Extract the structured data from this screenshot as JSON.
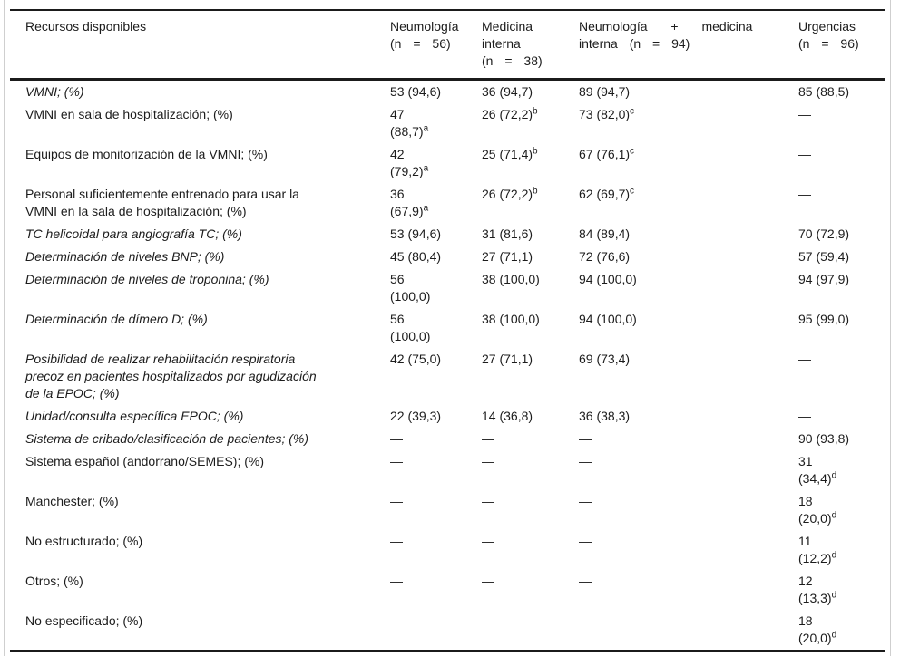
{
  "colors": {
    "text": "#1c1c1c",
    "heavy_rule": "#1b1b1b",
    "frame_border": "#cfcfcf",
    "background": "#ffffff"
  },
  "table": {
    "empty_marker": "—",
    "columns": [
      {
        "lines": [
          "Recursos disponibles"
        ]
      },
      {
        "lines": [
          "Neumología",
          "(n = 56)"
        ]
      },
      {
        "lines": [
          "Medicina",
          "interna",
          "(n = 38)"
        ]
      },
      {
        "lines": [
          "Neumología + medicina",
          "interna (n = 94)"
        ]
      },
      {
        "lines": [
          "Urgencias",
          "(n = 96)"
        ]
      }
    ],
    "rows": [
      {
        "italic": true,
        "label": {
          "lines": [
            "VMNI; (%)"
          ]
        },
        "cells": [
          {
            "lines": [
              "53 (94,6)"
            ]
          },
          {
            "lines": [
              "36 (94,7)"
            ]
          },
          {
            "lines": [
              "89 (94,7)"
            ]
          },
          {
            "lines": [
              "85 (88,5)"
            ]
          }
        ]
      },
      {
        "italic": false,
        "label": {
          "lines": [
            "VMNI en sala de hospitalización; (%)"
          ]
        },
        "cells": [
          {
            "lines": [
              "47",
              "(88,7)"
            ],
            "sup": "a"
          },
          {
            "lines": [
              "26 (72,2)"
            ],
            "sup": "b"
          },
          {
            "lines": [
              "73 (82,0)"
            ],
            "sup": "c"
          },
          {
            "lines": [
              "—"
            ]
          }
        ]
      },
      {
        "italic": false,
        "label": {
          "lines": [
            "Equipos de monitorización de la VMNI; (%)"
          ]
        },
        "cells": [
          {
            "lines": [
              "42",
              "(79,2)"
            ],
            "sup": "a"
          },
          {
            "lines": [
              "25 (71,4)"
            ],
            "sup": "b"
          },
          {
            "lines": [
              "67 (76,1)"
            ],
            "sup": "c"
          },
          {
            "lines": [
              "—"
            ]
          }
        ]
      },
      {
        "italic": false,
        "label": {
          "lines": [
            "Personal suficientemente entrenado para usar la",
            "VMNI en la sala de hospitalización; (%)"
          ]
        },
        "cells": [
          {
            "lines": [
              "36",
              "(67,9)"
            ],
            "sup": "a"
          },
          {
            "lines": [
              "26 (72,2)"
            ],
            "sup": "b"
          },
          {
            "lines": [
              "62 (69,7)"
            ],
            "sup": "c"
          },
          {
            "lines": [
              "—"
            ]
          }
        ]
      },
      {
        "italic": true,
        "label": {
          "lines": [
            "TC helicoidal para angiografía TC; (%)"
          ]
        },
        "cells": [
          {
            "lines": [
              "53 (94,6)"
            ]
          },
          {
            "lines": [
              "31 (81,6)"
            ]
          },
          {
            "lines": [
              "84 (89,4)"
            ]
          },
          {
            "lines": [
              "70 (72,9)"
            ]
          }
        ]
      },
      {
        "italic": true,
        "label": {
          "lines": [
            "Determinación de niveles BNP; (%)"
          ]
        },
        "cells": [
          {
            "lines": [
              "45 (80,4)"
            ]
          },
          {
            "lines": [
              "27 (71,1)"
            ]
          },
          {
            "lines": [
              "72 (76,6)"
            ]
          },
          {
            "lines": [
              "57 (59,4)"
            ]
          }
        ]
      },
      {
        "italic": true,
        "label": {
          "lines": [
            "Determinación de niveles de troponina; (%)"
          ]
        },
        "cells": [
          {
            "lines": [
              "56",
              "(100,0)"
            ]
          },
          {
            "lines": [
              "38 (100,0)"
            ]
          },
          {
            "lines": [
              "94 (100,0)"
            ]
          },
          {
            "lines": [
              "94 (97,9)"
            ]
          }
        ]
      },
      {
        "italic": true,
        "label": {
          "lines": [
            "Determinación de dímero D; (%)"
          ]
        },
        "cells": [
          {
            "lines": [
              "56",
              "(100,0)"
            ]
          },
          {
            "lines": [
              "38 (100,0)"
            ]
          },
          {
            "lines": [
              "94 (100,0)"
            ]
          },
          {
            "lines": [
              "95 (99,0)"
            ]
          }
        ]
      },
      {
        "italic": true,
        "label": {
          "lines": [
            "Posibilidad de realizar rehabilitación respiratoria",
            "precoz en pacientes hospitalizados por agudización",
            "de la EPOC; (%)"
          ]
        },
        "cells": [
          {
            "lines": [
              "42 (75,0)"
            ]
          },
          {
            "lines": [
              "27 (71,1)"
            ]
          },
          {
            "lines": [
              "69 (73,4)"
            ]
          },
          {
            "lines": [
              "—"
            ]
          }
        ]
      },
      {
        "italic": true,
        "label": {
          "lines": [
            "Unidad/consulta específica EPOC; (%)"
          ]
        },
        "cells": [
          {
            "lines": [
              "22 (39,3)"
            ]
          },
          {
            "lines": [
              "14 (36,8)"
            ]
          },
          {
            "lines": [
              "36 (38,3)"
            ]
          },
          {
            "lines": [
              "—"
            ]
          }
        ]
      },
      {
        "italic": true,
        "label": {
          "lines": [
            "Sistema de cribado/clasificación de pacientes; (%)"
          ]
        },
        "cells": [
          {
            "lines": [
              "—"
            ]
          },
          {
            "lines": [
              "—"
            ]
          },
          {
            "lines": [
              "—"
            ]
          },
          {
            "lines": [
              "90 (93,8)"
            ]
          }
        ]
      },
      {
        "italic": false,
        "label": {
          "lines": [
            "Sistema español (andorrano/SEMES); (%)"
          ]
        },
        "cells": [
          {
            "lines": [
              "—"
            ]
          },
          {
            "lines": [
              "—"
            ]
          },
          {
            "lines": [
              "—"
            ]
          },
          {
            "lines": [
              "31",
              "(34,4)"
            ],
            "sup": "d"
          }
        ]
      },
      {
        "italic": false,
        "label": {
          "lines": [
            "Manchester; (%)"
          ]
        },
        "cells": [
          {
            "lines": [
              "—"
            ]
          },
          {
            "lines": [
              "—"
            ]
          },
          {
            "lines": [
              "—"
            ]
          },
          {
            "lines": [
              "18",
              "(20,0)"
            ],
            "sup": "d"
          }
        ]
      },
      {
        "italic": false,
        "label": {
          "lines": [
            "No estructurado; (%)"
          ]
        },
        "cells": [
          {
            "lines": [
              "—"
            ]
          },
          {
            "lines": [
              "—"
            ]
          },
          {
            "lines": [
              "—"
            ]
          },
          {
            "lines": [
              "11",
              "(12,2)"
            ],
            "sup": "d"
          }
        ]
      },
      {
        "italic": false,
        "label": {
          "lines": [
            "Otros; (%)"
          ]
        },
        "cells": [
          {
            "lines": [
              "—"
            ]
          },
          {
            "lines": [
              "—"
            ]
          },
          {
            "lines": [
              "—"
            ]
          },
          {
            "lines": [
              "12",
              "(13,3)"
            ],
            "sup": "d"
          }
        ]
      },
      {
        "italic": false,
        "label": {
          "lines": [
            "No especificado; (%)"
          ]
        },
        "cells": [
          {
            "lines": [
              "—"
            ]
          },
          {
            "lines": [
              "—"
            ]
          },
          {
            "lines": [
              "—"
            ]
          },
          {
            "lines": [
              "18",
              "(20,0)"
            ],
            "sup": "d"
          }
        ]
      }
    ]
  }
}
